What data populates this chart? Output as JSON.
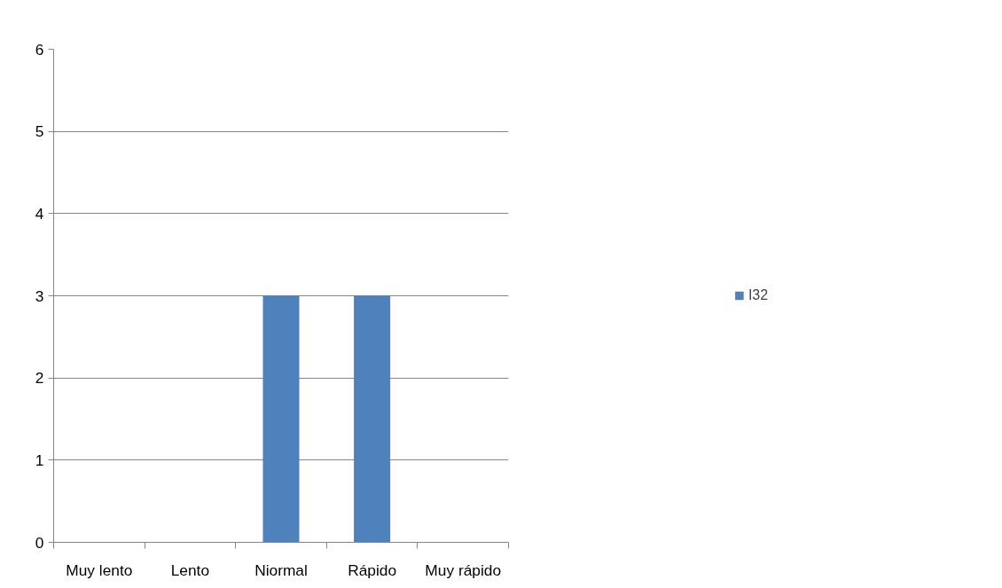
{
  "chart_data": {
    "type": "bar",
    "categories": [
      "Muy lento",
      "Lento",
      "Niormal",
      "Rápido",
      "Muy rápido"
    ],
    "series": [
      {
        "name": "I32",
        "color": "#4f81bd",
        "values": [
          0,
          0,
          3,
          3,
          0
        ]
      }
    ],
    "ylim": [
      0,
      6
    ],
    "yticks": [
      0,
      1,
      2,
      3,
      4,
      5,
      6
    ],
    "grid": "y",
    "legend": "right"
  }
}
